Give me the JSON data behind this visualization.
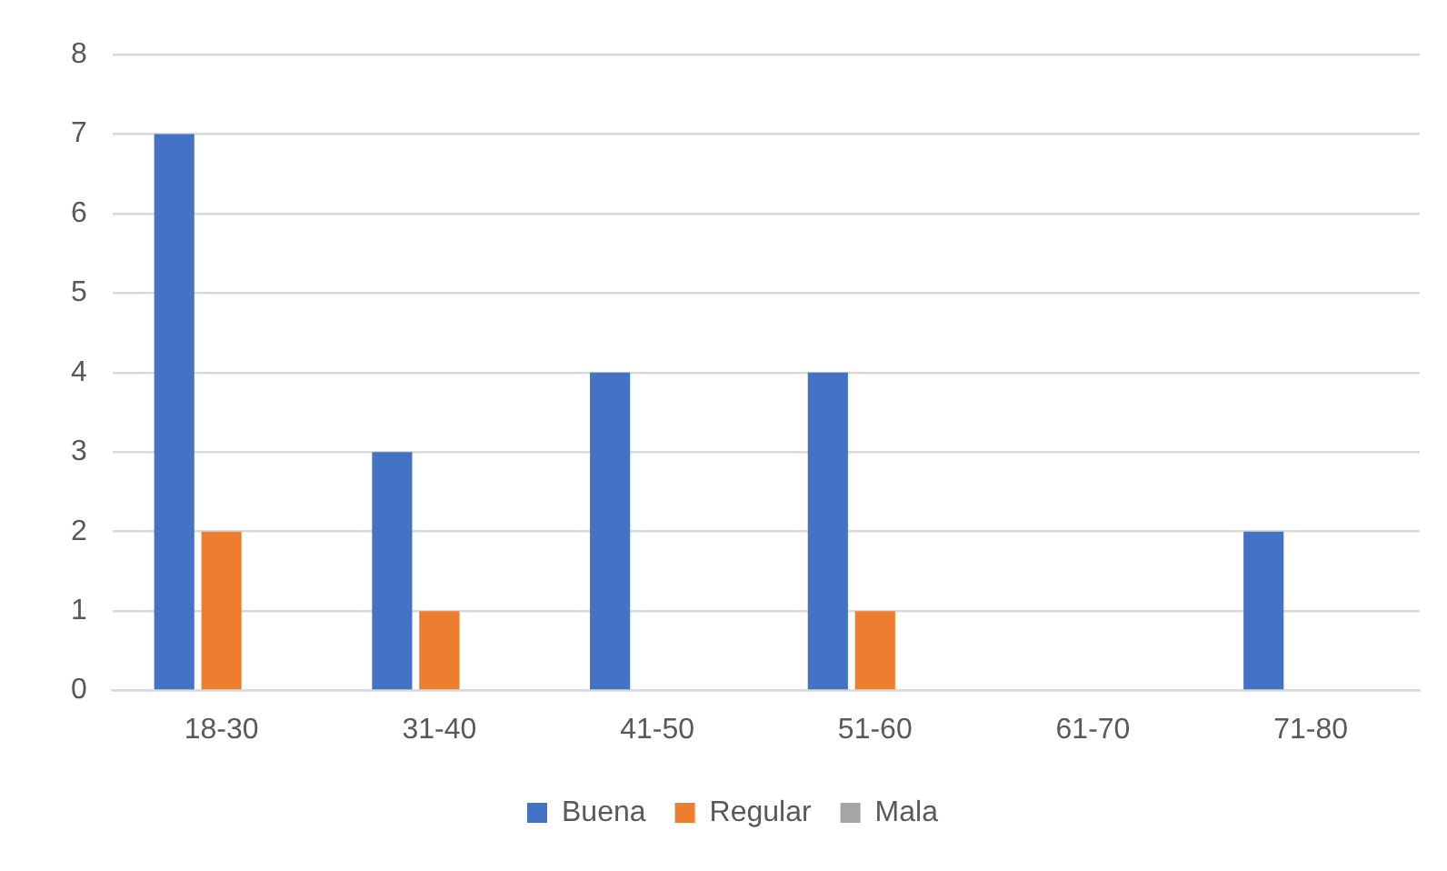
{
  "chart_data": {
    "type": "bar",
    "categories": [
      "18-30",
      "31-40",
      "41-50",
      "51-60",
      "61-70",
      "71-80"
    ],
    "series": [
      {
        "name": "Buena",
        "color": "#4472c4",
        "values": [
          7,
          3,
          4,
          4,
          0,
          2
        ]
      },
      {
        "name": "Regular",
        "color": "#ed7d31",
        "values": [
          2,
          1,
          0,
          1,
          0,
          0
        ]
      },
      {
        "name": "Mala",
        "color": "#a5a5a5",
        "values": [
          0,
          0,
          0,
          0,
          0,
          0
        ]
      }
    ],
    "ylim": [
      0,
      8
    ],
    "yticks": [
      0,
      1,
      2,
      3,
      4,
      5,
      6,
      7,
      8
    ],
    "grid": "y",
    "legend": "bottom"
  }
}
